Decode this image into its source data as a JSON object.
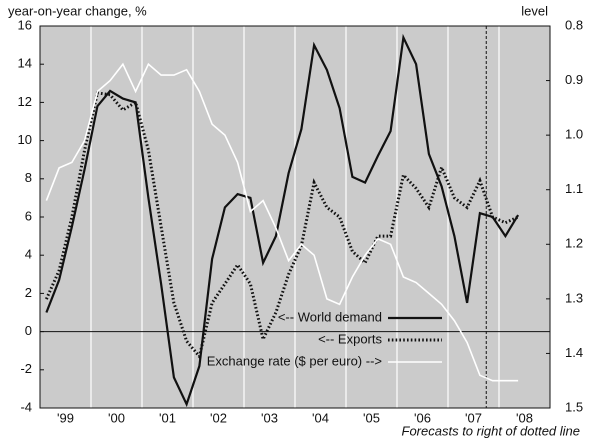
{
  "chart_data": {
    "type": "line",
    "y_title": "year-on-year change, %",
    "y2_title": "level",
    "note": "Forecasts to right of dotted line",
    "forecast_x": 2007.75,
    "x": [
      1999.125,
      1999.375,
      1999.625,
      1999.875,
      2000.125,
      2000.375,
      2000.625,
      2000.875,
      2001.125,
      2001.375,
      2001.625,
      2001.875,
      2002.125,
      2002.375,
      2002.625,
      2002.875,
      2003.125,
      2003.375,
      2003.625,
      2003.875,
      2004.125,
      2004.375,
      2004.625,
      2004.875,
      2005.125,
      2005.375,
      2005.625,
      2005.875,
      2006.125,
      2006.375,
      2006.625,
      2006.875,
      2007.125,
      2007.375,
      2007.625,
      2007.875,
      2008.125,
      2008.375
    ],
    "series": [
      {
        "name": "<-- World demand",
        "color": "#111111",
        "style": "solid",
        "values": [
          1.0,
          2.7,
          5.5,
          8.5,
          11.8,
          12.6,
          12.2,
          12.0,
          7.0,
          2.5,
          -2.4,
          -3.8,
          -1.8,
          3.8,
          6.5,
          7.2,
          7.0,
          3.6,
          5.0,
          8.3,
          10.6,
          15.0,
          13.7,
          11.7,
          8.1,
          7.8,
          9.2,
          10.5,
          15.4,
          14.0,
          9.3,
          7.6,
          5.0,
          1.5,
          6.2,
          6.0,
          5.0,
          6.1
        ]
      },
      {
        "name": "<-- Exports",
        "color": "#111111",
        "style": "dotted",
        "values": [
          1.7,
          3.2,
          6,
          9.5,
          12.5,
          12.4,
          11.6,
          12.0,
          9.5,
          5.5,
          1.5,
          -0.5,
          -1.3,
          1.5,
          2.5,
          3.5,
          2.5,
          -0.4,
          1.0,
          3.0,
          4.5,
          7.8,
          6.5,
          6.0,
          4.2,
          3.6,
          5.0,
          5.0,
          8.2,
          7.5,
          6.5,
          8.6,
          7.0,
          6.5,
          7.9,
          6.0,
          5.7,
          6.0
        ]
      },
      {
        "name": "Exchange rate ($ per euro) -->",
        "color": "#ffffff",
        "style": "solid",
        "axis": "y2",
        "values": [
          1.12,
          1.06,
          1.05,
          1.01,
          0.92,
          0.9,
          0.87,
          0.92,
          0.87,
          0.89,
          0.89,
          0.88,
          0.92,
          0.98,
          1.0,
          1.05,
          1.14,
          1.12,
          1.17,
          1.23,
          1.2,
          1.22,
          1.3,
          1.31,
          1.26,
          1.22,
          1.19,
          1.2,
          1.26,
          1.27,
          1.29,
          1.31,
          1.34,
          1.38,
          1.44,
          1.45,
          1.45,
          1.45
        ]
      }
    ],
    "xlim": [
      1999,
      2009
    ],
    "xticks": [
      {
        "value": 1999.5,
        "label": "'99"
      },
      {
        "value": 2000.5,
        "label": "'00"
      },
      {
        "value": 2001.5,
        "label": "'01"
      },
      {
        "value": 2002.5,
        "label": "'02"
      },
      {
        "value": 2003.5,
        "label": "'03"
      },
      {
        "value": 2004.5,
        "label": "'04"
      },
      {
        "value": 2005.5,
        "label": "'05"
      },
      {
        "value": 2006.5,
        "label": "'06"
      },
      {
        "value": 2007.5,
        "label": "'07"
      },
      {
        "value": 2008.5,
        "label": "'08"
      }
    ],
    "xgrid": [
      2000,
      2001,
      2002,
      2003,
      2004,
      2005,
      2006,
      2007,
      2008
    ],
    "ylim": [
      -4,
      16
    ],
    "yticks": [
      -4,
      -2,
      0,
      2,
      4,
      6,
      8,
      10,
      12,
      14,
      16
    ],
    "y2lim": [
      1.5,
      0.8
    ],
    "y2ticks": [
      0.8,
      0.9,
      {
        "value": 1,
        "label": "1.0"
      },
      1.1,
      1.2,
      1.3,
      1.4,
      1.5
    ],
    "legend": "bottom-right"
  }
}
